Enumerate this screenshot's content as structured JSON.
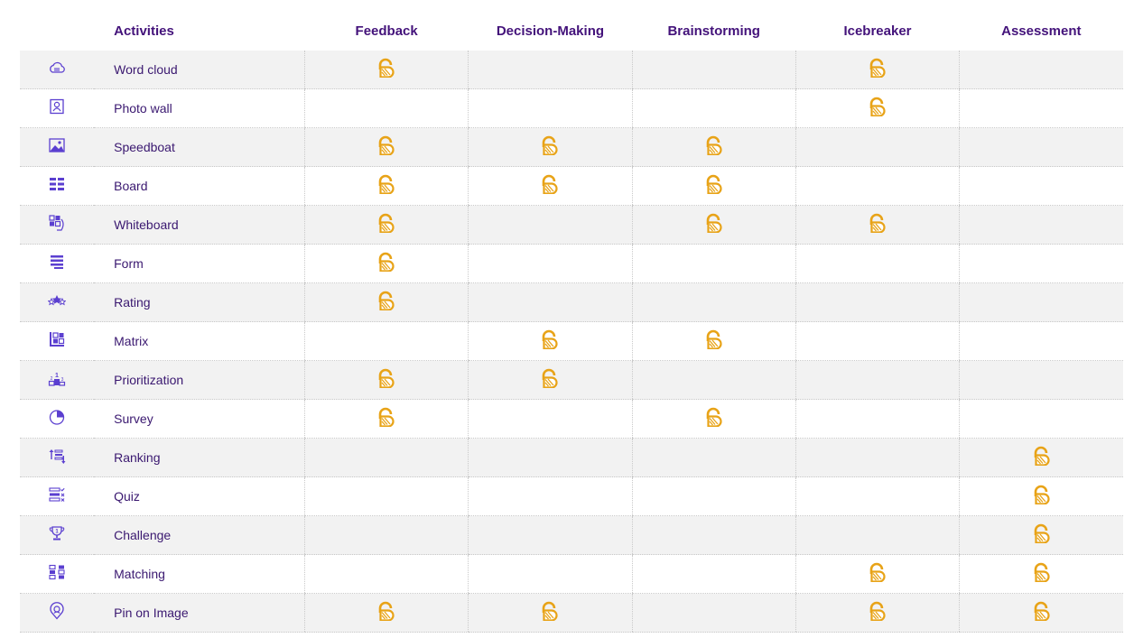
{
  "header": {
    "activities": "Activities",
    "categories": [
      "Feedback",
      "Decision-Making",
      "Brainstorming",
      "Icebreaker",
      "Assessment"
    ]
  },
  "colors": {
    "header_text": "#43127a",
    "row_text": "#3a1870",
    "icon": "#5b3fd0",
    "mark": "#e8a317",
    "stripe": "#f2f2f2"
  },
  "mark_icon": "badge-icon",
  "rows": [
    {
      "name": "Word cloud",
      "icon": "cloud-icon",
      "marks": [
        1,
        0,
        0,
        1,
        0
      ]
    },
    {
      "name": "Photo wall",
      "icon": "photo-portrait-icon",
      "marks": [
        0,
        0,
        0,
        1,
        0
      ]
    },
    {
      "name": "Speedboat",
      "icon": "image-icon",
      "marks": [
        1,
        1,
        1,
        0,
        0
      ]
    },
    {
      "name": "Board",
      "icon": "board-icon",
      "marks": [
        1,
        1,
        1,
        0,
        0
      ]
    },
    {
      "name": "Whiteboard",
      "icon": "whiteboard-icon",
      "marks": [
        1,
        0,
        1,
        1,
        0
      ]
    },
    {
      "name": "Form",
      "icon": "form-icon",
      "marks": [
        1,
        0,
        0,
        0,
        0
      ]
    },
    {
      "name": "Rating",
      "icon": "stars-icon",
      "marks": [
        1,
        0,
        0,
        0,
        0
      ]
    },
    {
      "name": "Matrix",
      "icon": "matrix-icon",
      "marks": [
        0,
        1,
        1,
        0,
        0
      ]
    },
    {
      "name": "Prioritization",
      "icon": "podium-icon",
      "marks": [
        1,
        1,
        0,
        0,
        0
      ]
    },
    {
      "name": "Survey",
      "icon": "pie-chart-icon",
      "marks": [
        1,
        0,
        1,
        0,
        0
      ]
    },
    {
      "name": "Ranking",
      "icon": "sort-list-icon",
      "marks": [
        0,
        0,
        0,
        0,
        1
      ]
    },
    {
      "name": "Quiz",
      "icon": "checklist-icon",
      "marks": [
        0,
        0,
        0,
        0,
        1
      ]
    },
    {
      "name": "Challenge",
      "icon": "trophy-icon",
      "marks": [
        0,
        0,
        0,
        0,
        1
      ]
    },
    {
      "name": "Matching",
      "icon": "matching-icon",
      "marks": [
        0,
        0,
        0,
        1,
        1
      ]
    },
    {
      "name": "Pin on Image",
      "icon": "map-pin-icon",
      "marks": [
        1,
        1,
        0,
        1,
        1
      ]
    }
  ]
}
